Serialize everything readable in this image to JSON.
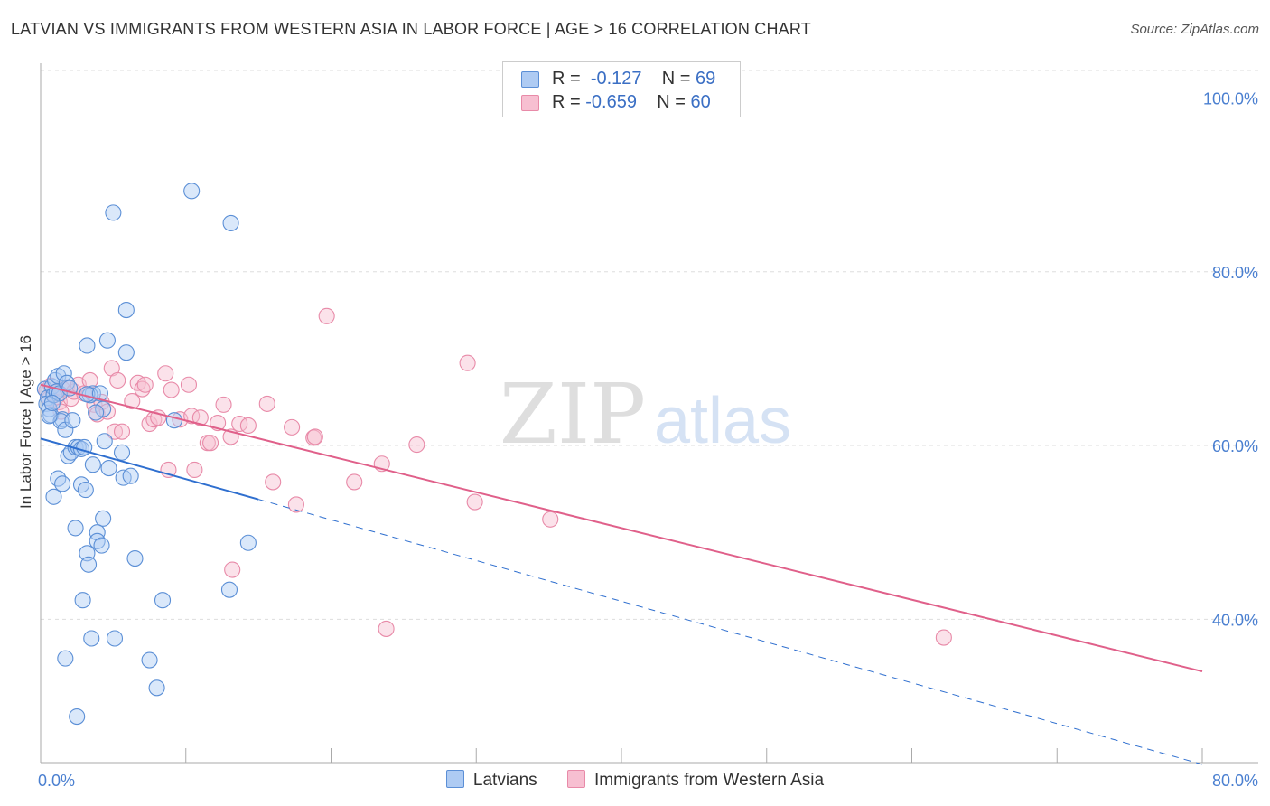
{
  "header": {
    "title": "LATVIAN VS IMMIGRANTS FROM WESTERN ASIA IN LABOR FORCE | AGE > 16 CORRELATION CHART",
    "source": "Source: ZipAtlas.com"
  },
  "watermark": {
    "zip": "ZIP",
    "atlas": "atlas"
  },
  "legend": {
    "series": [
      {
        "r_label": "R =",
        "r_value": "-0.127",
        "n_label": "N =",
        "n_value": "69"
      },
      {
        "r_label": "R =",
        "r_value": "-0.659",
        "n_label": "N =",
        "n_value": "60"
      }
    ]
  },
  "colors": {
    "latvians_fill": "#aecbf3",
    "latvians_stroke": "#5b8fd6",
    "latvians_line": "#2f6fcf",
    "western_asia_fill": "#f7bfd1",
    "western_asia_stroke": "#e88aa8",
    "western_asia_line": "#e0608a",
    "axis_text": "#4a7fd0",
    "grid": "#dddddd"
  },
  "chart_data": {
    "type": "scatter",
    "title": "LATVIAN VS IMMIGRANTS FROM WESTERN ASIA IN LABOR FORCE | AGE > 16 CORRELATION CHART",
    "xlabel": "",
    "ylabel": "In Labor Force | Age > 16",
    "xlim": [
      0,
      80
    ],
    "ylim": [
      23.5,
      104
    ],
    "x_tick_labels": [
      "0.0%",
      "80.0%"
    ],
    "y_ticks": [
      40,
      60,
      80,
      100
    ],
    "y_tick_labels": [
      "40.0%",
      "60.0%",
      "80.0%",
      "100.0%"
    ],
    "grid": true,
    "legend_position": "top-center",
    "series": [
      {
        "name": "Latvians",
        "r": -0.127,
        "n": 69,
        "trend": {
          "x0": 0,
          "y0": 60.8,
          "x1": 15,
          "y1": 53.8,
          "dashed_to_x": 80,
          "dashed_to_y": 23.3
        },
        "points": [
          [
            0.3,
            66.5
          ],
          [
            0.5,
            65.5
          ],
          [
            0.4,
            64.8
          ],
          [
            0.6,
            64.2
          ],
          [
            0.7,
            63.5
          ],
          [
            0.8,
            66.8
          ],
          [
            1.0,
            67.5
          ],
          [
            1.2,
            68.0
          ],
          [
            0.9,
            65.8
          ],
          [
            1.1,
            66.2
          ],
          [
            1.3,
            66.0
          ],
          [
            1.5,
            63.0
          ],
          [
            1.6,
            68.3
          ],
          [
            1.8,
            67.2
          ],
          [
            2.0,
            66.6
          ],
          [
            1.4,
            62.8
          ],
          [
            1.7,
            61.8
          ],
          [
            2.2,
            62.9
          ],
          [
            1.9,
            58.8
          ],
          [
            2.1,
            59.2
          ],
          [
            2.4,
            59.8
          ],
          [
            2.6,
            59.8
          ],
          [
            2.8,
            59.6
          ],
          [
            3.0,
            59.8
          ],
          [
            1.2,
            56.2
          ],
          [
            1.5,
            55.6
          ],
          [
            0.9,
            54.1
          ],
          [
            2.8,
            55.5
          ],
          [
            3.1,
            54.9
          ],
          [
            3.6,
            66.0
          ],
          [
            3.4,
            65.8
          ],
          [
            3.2,
            65.9
          ],
          [
            4.1,
            66.0
          ],
          [
            4.3,
            64.2
          ],
          [
            3.8,
            63.8
          ],
          [
            4.4,
            60.5
          ],
          [
            4.7,
            57.4
          ],
          [
            3.6,
            57.8
          ],
          [
            5.6,
            59.2
          ],
          [
            5.7,
            56.3
          ],
          [
            6.2,
            56.5
          ],
          [
            4.3,
            51.6
          ],
          [
            3.9,
            50.0
          ],
          [
            2.4,
            50.5
          ],
          [
            3.9,
            49.0
          ],
          [
            4.2,
            48.5
          ],
          [
            3.2,
            47.6
          ],
          [
            3.3,
            46.3
          ],
          [
            6.5,
            47.0
          ],
          [
            2.9,
            42.2
          ],
          [
            8.4,
            42.2
          ],
          [
            13.0,
            43.4
          ],
          [
            14.3,
            48.8
          ],
          [
            3.5,
            37.8
          ],
          [
            5.1,
            37.8
          ],
          [
            1.7,
            35.5
          ],
          [
            7.5,
            35.3
          ],
          [
            8.0,
            32.1
          ],
          [
            2.5,
            28.8
          ],
          [
            5.0,
            86.8
          ],
          [
            10.4,
            89.3
          ],
          [
            13.1,
            85.6
          ],
          [
            5.9,
            75.6
          ],
          [
            4.6,
            72.1
          ],
          [
            3.2,
            71.5
          ],
          [
            5.9,
            70.7
          ],
          [
            9.2,
            62.9
          ],
          [
            0.6,
            63.4
          ],
          [
            0.8,
            64.9
          ]
        ]
      },
      {
        "name": "Immigrants from Western Asia",
        "r": -0.659,
        "n": 60,
        "trend": {
          "x0": 0,
          "y0": 67.0,
          "x1": 80,
          "y1": 34.0
        },
        "points": [
          [
            0.4,
            66.3
          ],
          [
            0.6,
            65.4
          ],
          [
            0.7,
            66.9
          ],
          [
            0.9,
            66.0
          ],
          [
            1.1,
            65.6
          ],
          [
            1.3,
            65.0
          ],
          [
            1.5,
            66.5
          ],
          [
            1.8,
            66.7
          ],
          [
            2.1,
            65.4
          ],
          [
            2.3,
            66.2
          ],
          [
            2.6,
            67.0
          ],
          [
            3.0,
            66.0
          ],
          [
            3.4,
            67.5
          ],
          [
            3.7,
            64.7
          ],
          [
            3.9,
            63.6
          ],
          [
            4.2,
            65.0
          ],
          [
            4.6,
            63.9
          ],
          [
            4.9,
            68.9
          ],
          [
            5.1,
            61.6
          ],
          [
            5.6,
            61.6
          ],
          [
            5.3,
            67.5
          ],
          [
            6.3,
            65.1
          ],
          [
            6.7,
            67.2
          ],
          [
            7.0,
            66.5
          ],
          [
            7.2,
            67.0
          ],
          [
            7.5,
            62.5
          ],
          [
            7.8,
            63.0
          ],
          [
            8.1,
            63.2
          ],
          [
            8.6,
            68.3
          ],
          [
            9.0,
            66.4
          ],
          [
            9.6,
            63.0
          ],
          [
            10.2,
            67.0
          ],
          [
            10.4,
            63.4
          ],
          [
            11.0,
            63.2
          ],
          [
            11.5,
            60.3
          ],
          [
            11.7,
            60.3
          ],
          [
            12.2,
            62.6
          ],
          [
            12.6,
            64.7
          ],
          [
            13.1,
            61.0
          ],
          [
            13.7,
            62.5
          ],
          [
            14.3,
            62.3
          ],
          [
            15.6,
            64.8
          ],
          [
            16.0,
            55.8
          ],
          [
            17.3,
            62.1
          ],
          [
            17.6,
            53.2
          ],
          [
            18.8,
            60.9
          ],
          [
            18.9,
            61.0
          ],
          [
            19.7,
            74.9
          ],
          [
            21.6,
            55.8
          ],
          [
            23.5,
            57.9
          ],
          [
            25.9,
            60.1
          ],
          [
            29.4,
            69.5
          ],
          [
            29.9,
            53.5
          ],
          [
            35.1,
            51.5
          ],
          [
            13.2,
            45.7
          ],
          [
            8.8,
            57.2
          ],
          [
            10.6,
            57.2
          ],
          [
            23.8,
            38.9
          ],
          [
            62.2,
            37.9
          ],
          [
            1.4,
            63.9
          ]
        ]
      }
    ]
  },
  "bottom_legend": {
    "items": [
      {
        "label": "Latvians"
      },
      {
        "label": "Immigrants from Western Asia"
      }
    ]
  }
}
